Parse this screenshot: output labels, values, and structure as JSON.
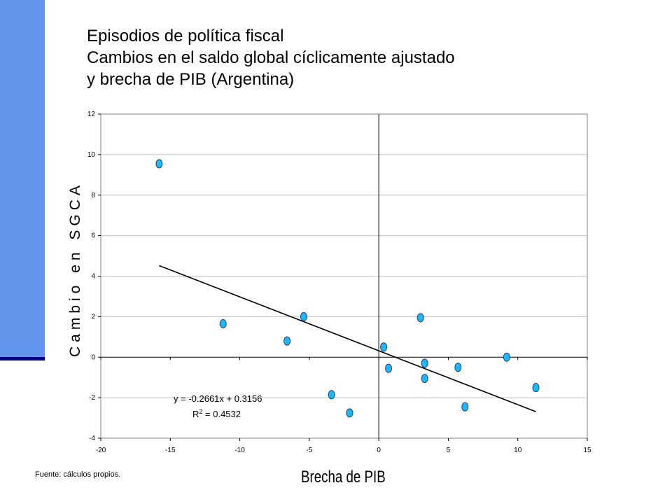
{
  "title": {
    "line1": "Episodios de política fiscal",
    "line2": "Cambios en el saldo global cíclicamente ajustado",
    "line3": "y brecha de PIB (Argentina)"
  },
  "source": "Fuente: cálculos propios.",
  "colors": {
    "sidebar": "#6495ed",
    "sidebar_line": "#000080",
    "point_fill": "#1fb8f0",
    "point_stroke": "#1a3a8a",
    "grid": "#c0c0c0",
    "trend": "#000000"
  },
  "chart_data": {
    "type": "scatter",
    "title": "",
    "xlabel": "Brecha de PIB",
    "ylabel": "Cambio en SGCA",
    "xlim": [
      -20,
      15
    ],
    "ylim": [
      -4,
      12
    ],
    "xticks": [
      -20,
      -15,
      -10,
      -5,
      0,
      5,
      10,
      15
    ],
    "yticks": [
      -4,
      -2,
      0,
      2,
      4,
      6,
      8,
      10,
      12
    ],
    "grid": "horizontal",
    "series": [
      {
        "points": [
          {
            "x": -15.8,
            "y": 9.55
          },
          {
            "x": -11.2,
            "y": 1.65
          },
          {
            "x": -6.6,
            "y": 0.8
          },
          {
            "x": -5.4,
            "y": 2.0
          },
          {
            "x": -3.4,
            "y": -1.85
          },
          {
            "x": -2.1,
            "y": -2.75
          },
          {
            "x": 0.35,
            "y": 0.5
          },
          {
            "x": 0.7,
            "y": -0.55
          },
          {
            "x": 3.0,
            "y": 1.95
          },
          {
            "x": 3.3,
            "y": -0.3
          },
          {
            "x": 3.3,
            "y": -1.05
          },
          {
            "x": 5.7,
            "y": -0.5
          },
          {
            "x": 6.2,
            "y": -2.45
          },
          {
            "x": 9.2,
            "y": 0.0
          },
          {
            "x": 11.3,
            "y": -1.5
          }
        ]
      }
    ],
    "trendline": {
      "slope": -0.2661,
      "intercept": 0.3156,
      "x_range": [
        -15.8,
        11.3
      ],
      "equation_label": "y = -0.2661x + 0.3156",
      "r2_prefix": "R",
      "r2_sup": "2",
      "r2_value": " = 0.4532"
    }
  }
}
